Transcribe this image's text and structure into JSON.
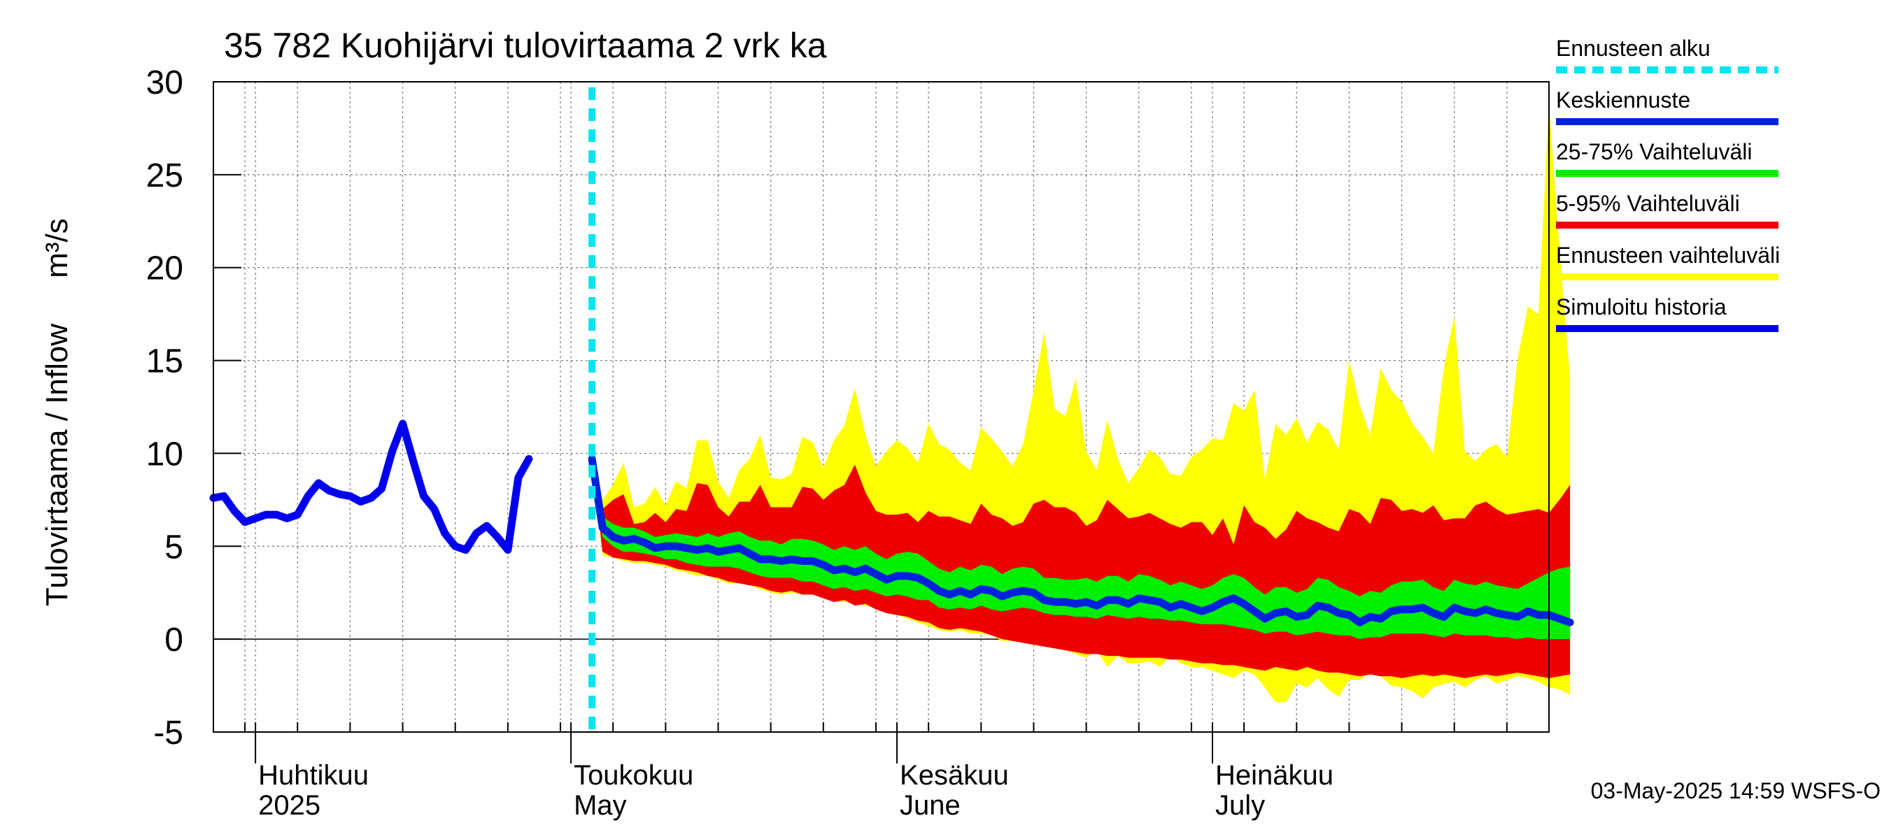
{
  "chart_data": {
    "type": "area",
    "title": "35 782 Kuohijärvi tulovirtaama 2 vrk ka",
    "ylabel": "Tulovirtaama / Inflow",
    "yunit": "m³/s",
    "ylim": [
      -5,
      30
    ],
    "yticks": [
      -5,
      0,
      5,
      10,
      15,
      20,
      25,
      30
    ],
    "xlim": [
      "2025-03-28",
      "2025-08-02"
    ],
    "grid": true,
    "legend_position": "right",
    "month_labels": [
      {
        "date": "2025-04-01",
        "fi": "Huhtikuu",
        "en": "2025"
      },
      {
        "date": "2025-05-01",
        "fi": "Toukokuu",
        "en": "May"
      },
      {
        "date": "2025-06-01",
        "fi": "Kesäkuu",
        "en": "June"
      },
      {
        "date": "2025-07-01",
        "fi": "Heinäkuu",
        "en": "July"
      }
    ],
    "forecast_start": "2025-05-03",
    "footer": "03-May-2025 14:59 WSFS-O",
    "legend": [
      {
        "key": "forecast_start",
        "label": "Ennusteen alku",
        "color": "#00e5ee",
        "style": "dashed"
      },
      {
        "key": "median",
        "label": "Keskiennuste",
        "color": "#0022dd",
        "style": "solid"
      },
      {
        "key": "band_25_75",
        "label": "25-75% Vaihteluväli",
        "color": "#00ee00",
        "style": "solid"
      },
      {
        "key": "band_5_95",
        "label": "5-95% Vaihteluväli",
        "color": "#ee0000",
        "style": "solid"
      },
      {
        "key": "band_full",
        "label": "Ennusteen vaihteluväli",
        "color": "#ffff00",
        "style": "solid"
      },
      {
        "key": "history",
        "label": "Simuloitu historia",
        "color": "#0000ee",
        "style": "solid"
      }
    ],
    "history": {
      "start": "2025-03-28",
      "values": [
        7.6,
        7.7,
        6.9,
        6.3,
        6.5,
        6.7,
        6.7,
        6.5,
        6.7,
        7.7,
        8.4,
        8.0,
        7.8,
        7.7,
        7.4,
        7.6,
        8.1,
        10.1,
        11.6,
        9.6,
        7.7,
        7.0,
        5.7,
        5.0,
        4.8,
        5.7,
        6.1,
        5.5,
        4.8,
        8.7,
        9.7
      ]
    },
    "forecast": {
      "start": "2025-05-03",
      "median": [
        9.7,
        6.0,
        5.5,
        5.3,
        5.4,
        5.2,
        4.9,
        5.0,
        5.0,
        4.9,
        4.8,
        4.9,
        4.7,
        4.8,
        4.9,
        4.6,
        4.3,
        4.3,
        4.2,
        4.3,
        4.2,
        4.2,
        4.0,
        3.7,
        3.8,
        3.6,
        3.8,
        3.5,
        3.2,
        3.4,
        3.4,
        3.3,
        3.0,
        2.6,
        2.4,
        2.6,
        2.4,
        2.7,
        2.6,
        2.3,
        2.5,
        2.6,
        2.5,
        2.1,
        2.0,
        2.0,
        1.9,
        2.0,
        1.8,
        2.1,
        2.1,
        1.9,
        2.2,
        2.1,
        2.0,
        1.7,
        1.9,
        1.7,
        1.5,
        1.7,
        2.0,
        2.2,
        1.9,
        1.5,
        1.1,
        1.4,
        1.5,
        1.2,
        1.3,
        1.8,
        1.7,
        1.4,
        1.3,
        0.9,
        1.2,
        1.1,
        1.5,
        1.6,
        1.6,
        1.7,
        1.4,
        1.2,
        1.7,
        1.5,
        1.4,
        1.6,
        1.4,
        1.3,
        1.2,
        1.5,
        1.3,
        1.3,
        1.1,
        0.9
      ],
      "p25": [
        9.7,
        5.5,
        5.0,
        4.7,
        4.7,
        4.6,
        4.5,
        4.3,
        4.3,
        4.1,
        4.0,
        3.9,
        3.9,
        3.9,
        3.8,
        3.6,
        3.4,
        3.3,
        3.3,
        3.3,
        3.1,
        3.1,
        2.9,
        2.7,
        2.8,
        2.6,
        2.7,
        2.5,
        2.3,
        2.4,
        2.3,
        2.1,
        2.1,
        1.7,
        1.6,
        1.7,
        1.6,
        1.8,
        1.6,
        1.5,
        1.6,
        1.7,
        1.6,
        1.4,
        1.3,
        1.3,
        1.2,
        1.2,
        1.1,
        1.3,
        1.2,
        1.1,
        1.2,
        1.1,
        1.1,
        1.0,
        1.0,
        0.9,
        0.8,
        0.8,
        0.8,
        0.7,
        0.6,
        0.5,
        0.3,
        0.4,
        0.4,
        0.2,
        0.3,
        0.4,
        0.3,
        0.2,
        0.2,
        0.0,
        0.1,
        0.1,
        0.3,
        0.3,
        0.3,
        0.3,
        0.2,
        0.1,
        0.3,
        0.2,
        0.2,
        0.2,
        0.1,
        0.1,
        0.0,
        0.1,
        0.0,
        0.0,
        0.0,
        0.0
      ],
      "p75": [
        9.7,
        6.6,
        6.2,
        6.0,
        6.0,
        5.8,
        5.5,
        5.6,
        5.7,
        5.6,
        5.5,
        5.7,
        5.5,
        5.7,
        5.8,
        5.5,
        5.3,
        5.3,
        5.1,
        5.4,
        5.4,
        5.3,
        5.1,
        4.8,
        5.0,
        4.8,
        5.0,
        4.6,
        4.3,
        4.6,
        4.7,
        4.6,
        4.2,
        3.8,
        3.6,
        3.9,
        3.7,
        4.0,
        3.9,
        3.5,
        3.8,
        3.9,
        3.8,
        3.3,
        3.3,
        3.2,
        3.2,
        3.3,
        3.1,
        3.4,
        3.4,
        3.1,
        3.5,
        3.4,
        3.2,
        2.9,
        3.1,
        2.9,
        2.7,
        2.9,
        3.3,
        3.5,
        3.3,
        2.8,
        2.4,
        2.8,
        2.8,
        2.5,
        2.7,
        3.3,
        3.2,
        2.8,
        2.6,
        2.3,
        2.6,
        2.5,
        2.9,
        3.1,
        3.1,
        3.2,
        2.8,
        2.6,
        3.2,
        3.0,
        2.9,
        3.1,
        2.9,
        2.8,
        2.7,
        3.0,
        3.3,
        3.6,
        3.8,
        3.9
      ],
      "p5": [
        9.7,
        4.7,
        4.4,
        4.3,
        4.2,
        4.2,
        4.1,
        4.0,
        3.8,
        3.7,
        3.6,
        3.4,
        3.3,
        3.1,
        3.0,
        2.9,
        2.8,
        2.6,
        2.5,
        2.6,
        2.4,
        2.4,
        2.2,
        2.0,
        2.1,
        1.8,
        1.9,
        1.6,
        1.4,
        1.3,
        1.2,
        1.0,
        0.9,
        0.6,
        0.5,
        0.6,
        0.5,
        0.4,
        0.2,
        0.0,
        -0.1,
        -0.2,
        -0.3,
        -0.4,
        -0.5,
        -0.6,
        -0.7,
        -0.8,
        -0.8,
        -0.9,
        -0.9,
        -1.0,
        -1.0,
        -1.0,
        -1.0,
        -1.1,
        -1.1,
        -1.2,
        -1.3,
        -1.3,
        -1.4,
        -1.4,
        -1.5,
        -1.6,
        -1.7,
        -1.5,
        -1.6,
        -1.7,
        -1.5,
        -1.7,
        -1.8,
        -1.8,
        -1.9,
        -2.0,
        -1.9,
        -2.0,
        -2.0,
        -2.1,
        -2.0,
        -1.9,
        -2.0,
        -1.9,
        -2.0,
        -2.1,
        -2.0,
        -1.9,
        -2.0,
        -1.9,
        -1.8,
        -1.9,
        -2.0,
        -2.1,
        -2.0,
        -1.9
      ],
      "p95": [
        9.7,
        7.0,
        7.5,
        7.8,
        6.2,
        6.3,
        6.8,
        6.3,
        7.0,
        6.9,
        8.4,
        8.3,
        7.1,
        6.6,
        7.4,
        7.4,
        8.3,
        7.1,
        7.1,
        7.1,
        8.2,
        8.1,
        7.5,
        8.0,
        8.3,
        9.4,
        7.9,
        6.9,
        6.7,
        6.7,
        6.8,
        6.3,
        6.9,
        6.6,
        6.6,
        6.4,
        6.2,
        7.3,
        6.7,
        6.5,
        6.1,
        6.3,
        7.3,
        7.5,
        7.1,
        7.1,
        6.8,
        6.1,
        6.4,
        7.5,
        7.0,
        6.5,
        6.6,
        6.8,
        6.5,
        6.2,
        6.0,
        6.3,
        6.3,
        5.6,
        6.5,
        5.1,
        7.2,
        6.3,
        6.0,
        5.4,
        5.9,
        6.9,
        6.5,
        6.3,
        6.0,
        5.8,
        7.0,
        6.8,
        6.2,
        7.6,
        7.5,
        6.9,
        7.0,
        6.8,
        7.2,
        6.4,
        6.5,
        6.5,
        7.2,
        7.4,
        7.0,
        6.7,
        6.8,
        6.9,
        7.0,
        6.8,
        7.5,
        8.3
      ],
      "min": [
        9.7,
        4.5,
        4.4,
        4.2,
        4.1,
        4.1,
        4.0,
        3.9,
        3.7,
        3.6,
        3.4,
        3.4,
        3.2,
        3.0,
        3.0,
        2.9,
        2.7,
        2.5,
        2.4,
        2.5,
        2.4,
        2.4,
        2.2,
        2.0,
        2.0,
        1.9,
        1.8,
        1.7,
        1.5,
        1.3,
        1.1,
        0.9,
        0.7,
        0.5,
        0.4,
        0.5,
        0.3,
        0.3,
        0.2,
        -0.1,
        -0.1,
        -0.2,
        -0.3,
        -0.4,
        -0.5,
        -0.6,
        -0.8,
        -1.0,
        -0.6,
        -1.5,
        -0.9,
        -1.3,
        -1.3,
        -1.2,
        -1.5,
        -0.9,
        -1.3,
        -1.5,
        -1.5,
        -1.7,
        -1.9,
        -2.1,
        -1.7,
        -1.9,
        -2.6,
        -3.4,
        -3.4,
        -2.4,
        -2.6,
        -2.1,
        -2.7,
        -3.1,
        -2.2,
        -2.2,
        -1.8,
        -2.0,
        -2.5,
        -2.6,
        -2.8,
        -3.2,
        -2.6,
        -2.4,
        -2.3,
        -2.6,
        -2.2,
        -2.0,
        -2.4,
        -2.2,
        -2.0,
        -2.1,
        -2.3,
        -2.6,
        -2.7,
        -3.0
      ],
      "max": [
        9.7,
        7.5,
        8.3,
        9.5,
        7.1,
        7.3,
        8.2,
        7.2,
        8.5,
        8.1,
        10.7,
        10.7,
        8.5,
        7.6,
        9.1,
        9.7,
        11.0,
        8.7,
        8.6,
        8.9,
        10.9,
        10.6,
        9.2,
        10.7,
        11.5,
        13.5,
        11.0,
        9.3,
        10.1,
        10.7,
        10.3,
        9.5,
        11.6,
        10.5,
        10.2,
        9.5,
        9.1,
        11.4,
        10.8,
        10.1,
        9.3,
        10.5,
        13.4,
        16.5,
        12.4,
        12.0,
        14.0,
        10.1,
        9.1,
        11.8,
        9.7,
        8.4,
        9.2,
        10.2,
        9.8,
        8.9,
        8.8,
        9.8,
        10.2,
        10.8,
        10.7,
        12.7,
        12.3,
        13.4,
        8.6,
        11.6,
        11.0,
        11.9,
        10.6,
        11.7,
        11.3,
        10.2,
        15.0,
        12.6,
        11.0,
        14.6,
        13.4,
        12.8,
        11.6,
        10.9,
        10.0,
        14.6,
        17.4,
        10.1,
        9.6,
        10.2,
        10.5,
        9.8,
        15.0,
        17.9,
        17.5,
        28.8,
        21.0,
        14.0
      ]
    }
  }
}
